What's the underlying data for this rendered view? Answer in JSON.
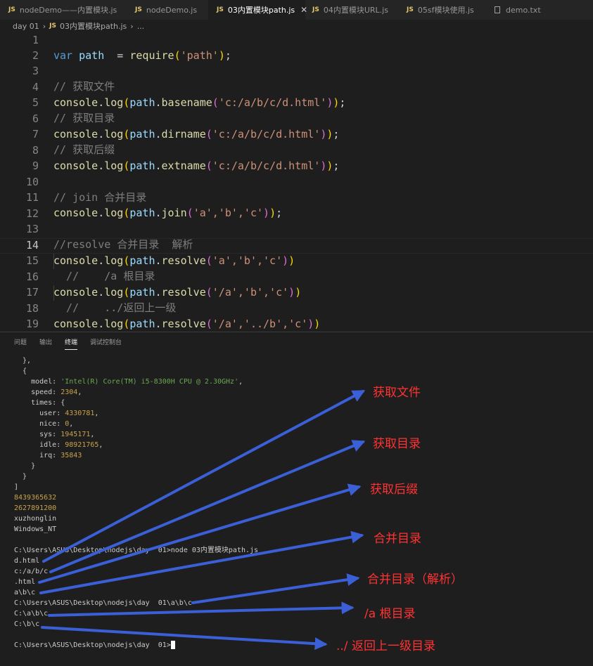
{
  "tabs": [
    {
      "label": "nodeDemo——内置模块.js",
      "icon": "js-icon",
      "active": false
    },
    {
      "label": "nodeDemo.js",
      "icon": "js-icon",
      "active": false
    },
    {
      "label": "03内置模块path.js",
      "icon": "js-icon",
      "active": true
    },
    {
      "label": "04内置模块URL.js",
      "icon": "js-icon",
      "active": false
    },
    {
      "label": "05sf模块使用.js",
      "icon": "js-icon",
      "active": false
    },
    {
      "label": "demo.txt",
      "icon": "document-icon",
      "active": false
    }
  ],
  "tab_close": "✕",
  "breadcrumb": {
    "folder": "day 01",
    "file": "03内置模块path.js",
    "symbol": "..."
  },
  "editor": {
    "current_line": "14",
    "line_numbers": [
      "1",
      "2",
      "3",
      "4",
      "5",
      "6",
      "7",
      "8",
      "9",
      "10",
      "11",
      "12",
      "13",
      "14",
      "15",
      "16",
      "17",
      "18",
      "19"
    ],
    "t": {
      "l1_var": "var",
      "l1_path": "path",
      "l1_eq": "  = ",
      "l1_req": "require",
      "l1_arg": "'path'",
      "l1_end": ";",
      "l3": "// 获取文件",
      "l4_arg": "'c:/a/b/c/d.html'",
      "l5": "// 获取目录",
      "l6_arg": "'c:/a/b/c/d.html'",
      "l7": "// 获取后缀",
      "l8_arg": "'c:/a/b/c/d.html'",
      "l10": "// join 合并目录",
      "l11_args": "'a','b','c'",
      "l13": "//resolve 合并目录  解析",
      "l14_args": "'a','b','c'",
      "l15": "  //    /a 根目录",
      "l16_args": "'/a','b','c'",
      "l17": "  //    ../返回上一级",
      "l18_args": "'/a','../b','c'",
      "console": "console",
      "log": "log",
      "path": "path",
      "basename": "basename",
      "dirname": "dirname",
      "extname": "extname",
      "join": "join",
      "resolve": "resolve"
    }
  },
  "panel_tabs": [
    "问题",
    "输出",
    "终端",
    "调试控制台"
  ],
  "active_panel_tab": "终端",
  "terminal": {
    "l1": "  },",
    "l2": "  {",
    "model_key": "    model: ",
    "model_val": "'Intel(R) Core(TM) i5-8300H CPU @ 2.30GHz'",
    "speed_key": "    speed: ",
    "speed_val": "2304",
    "times": "    times: {",
    "user_key": "      user: ",
    "user_val": "4330781",
    "nice_key": "      nice: ",
    "nice_val": "0",
    "sys_key": "      sys: ",
    "sys_val": "1945171",
    "idle_key": "      idle: ",
    "idle_val": "98921765",
    "irq_key": "      irq: ",
    "irq_val": "35843",
    "close1": "    }",
    "close2": "  }",
    "close3": "]",
    "n1": "8439365632",
    "n2": "2627891200",
    "user_name": "xuzhonglin",
    "os": "Windows_NT",
    "blank": " ",
    "cmd": "C:\\Users\\ASUS\\Desktop\\nodejs\\day  01>node 03内置模块path.js",
    "o1": "d.html",
    "o2": "c:/a/b/c",
    "o3": ".html",
    "o4": "a\\b\\c",
    "o5": "C:\\Users\\ASUS\\Desktop\\nodejs\\day  01\\a\\b\\c",
    "o6": "C:\\a\\b\\c",
    "o7": "C:\\b\\c",
    "prompt": "C:\\Users\\ASUS\\Desktop\\nodejs\\day  01>"
  },
  "annotations": {
    "a1": "获取文件",
    "a2": "获取目录",
    "a3": "获取后缀",
    "a4": "合并目录",
    "a5": "合并目录（解析）",
    "a6": "/a 根目录",
    "a7": "../ 返回上一级目录"
  },
  "colors": {
    "annotation_text": "#ff3333",
    "arrow": "#3a5fd6",
    "tab_active_bg": "#1e1e1e",
    "editor_bg": "#1e1e1e"
  }
}
